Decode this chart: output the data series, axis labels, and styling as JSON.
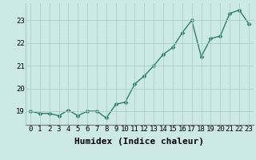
{
  "x": [
    0,
    1,
    2,
    3,
    4,
    5,
    6,
    7,
    8,
    9,
    10,
    11,
    12,
    13,
    14,
    15,
    16,
    17,
    18,
    19,
    20,
    21,
    22,
    23
  ],
  "y": [
    19.0,
    18.9,
    18.9,
    18.8,
    19.05,
    18.8,
    19.0,
    19.0,
    18.7,
    19.3,
    19.4,
    20.2,
    20.55,
    21.0,
    21.5,
    21.8,
    22.45,
    23.0,
    21.4,
    22.2,
    22.3,
    23.3,
    23.45,
    22.85
  ],
  "line_color": "#2e7d6e",
  "marker": "D",
  "marker_size": 2.5,
  "bg_color": "#cce9e5",
  "grid_color": "#aacfcb",
  "xlabel": "Humidex (Indice chaleur)",
  "xlabel_fontsize": 8,
  "yticks": [
    19,
    20,
    21,
    22,
    23
  ],
  "xtick_labels": [
    "0",
    "1",
    "2",
    "3",
    "4",
    "5",
    "6",
    "7",
    "8",
    "9",
    "10",
    "11",
    "12",
    "13",
    "14",
    "15",
    "16",
    "17",
    "18",
    "19",
    "20",
    "21",
    "22",
    "23"
  ],
  "ylim": [
    18.4,
    23.75
  ],
  "xlim": [
    -0.5,
    23.5
  ],
  "tick_fontsize": 6.5,
  "linewidth": 1.0
}
